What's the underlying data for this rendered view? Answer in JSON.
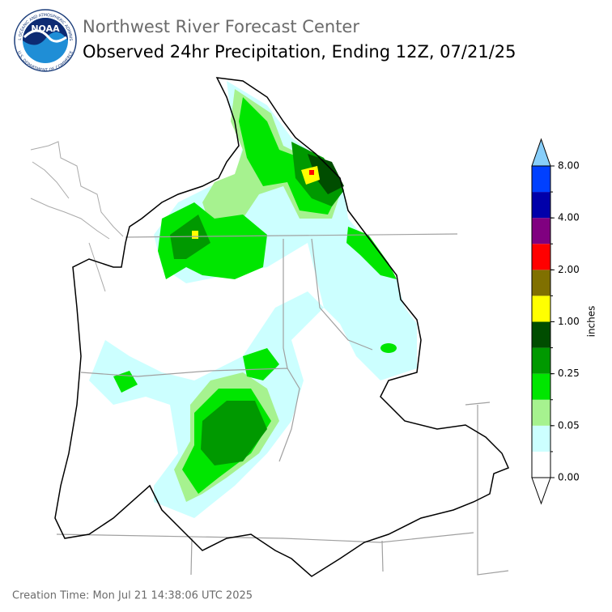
{
  "header": {
    "title": "Northwest River Forecast Center",
    "subtitle": "Observed 24hr Precipitation, Ending 12Z, 07/21/25"
  },
  "logo": {
    "text": "NOAA",
    "ring_top": "NATIONAL OCEANIC AND ATMOSPHERIC ADMINISTRATION",
    "ring_bottom": "U.S. DEPARTMENT OF COMMERCE"
  },
  "colorbar": {
    "label": "inches",
    "ticks": [
      "0.00",
      "0.05",
      "0.25",
      "1.00",
      "2.00",
      "4.00",
      "8.00"
    ],
    "colors": [
      "#ffffff",
      "#ccffff",
      "#a6f28f",
      "#00e600",
      "#009900",
      "#004d00",
      "#ffff00",
      "#807000",
      "#ff0000",
      "#800080",
      "#0000aa",
      "#0040ff"
    ],
    "under_color": "#ffffff",
    "over_color": "#87cefa"
  },
  "footer": {
    "creation_time": "Creation Time: Mon Jul 21 14:38:06 UTC 2025"
  }
}
